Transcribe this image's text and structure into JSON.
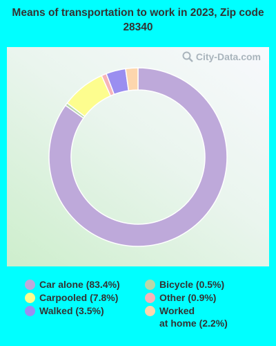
{
  "title": "Means of transportation to work in 2023, Zip code 28340",
  "watermark": "City-Data.com",
  "chart_data": {
    "type": "pie",
    "variant": "donut",
    "title": "Means of transportation to work in 2023, Zip code 28340",
    "legend_position": "bottom",
    "slices": [
      {
        "label": "Car alone (83.4%)",
        "value": 83.4,
        "color": "#bea9da"
      },
      {
        "label": "Bicycle (0.5%)",
        "value": 0.5,
        "color": "#b9d8a8"
      },
      {
        "label": "Carpooled (7.8%)",
        "value": 7.8,
        "color": "#fdfd8e"
      },
      {
        "label": "Other (0.9%)",
        "value": 0.9,
        "color": "#f6b4b9"
      },
      {
        "label": "Walked (3.5%)",
        "value": 3.5,
        "color": "#9a8ef0"
      },
      {
        "label": "Worked\nat home (2.2%)",
        "value": 2.2,
        "color": "#fdd6ad"
      }
    ]
  }
}
